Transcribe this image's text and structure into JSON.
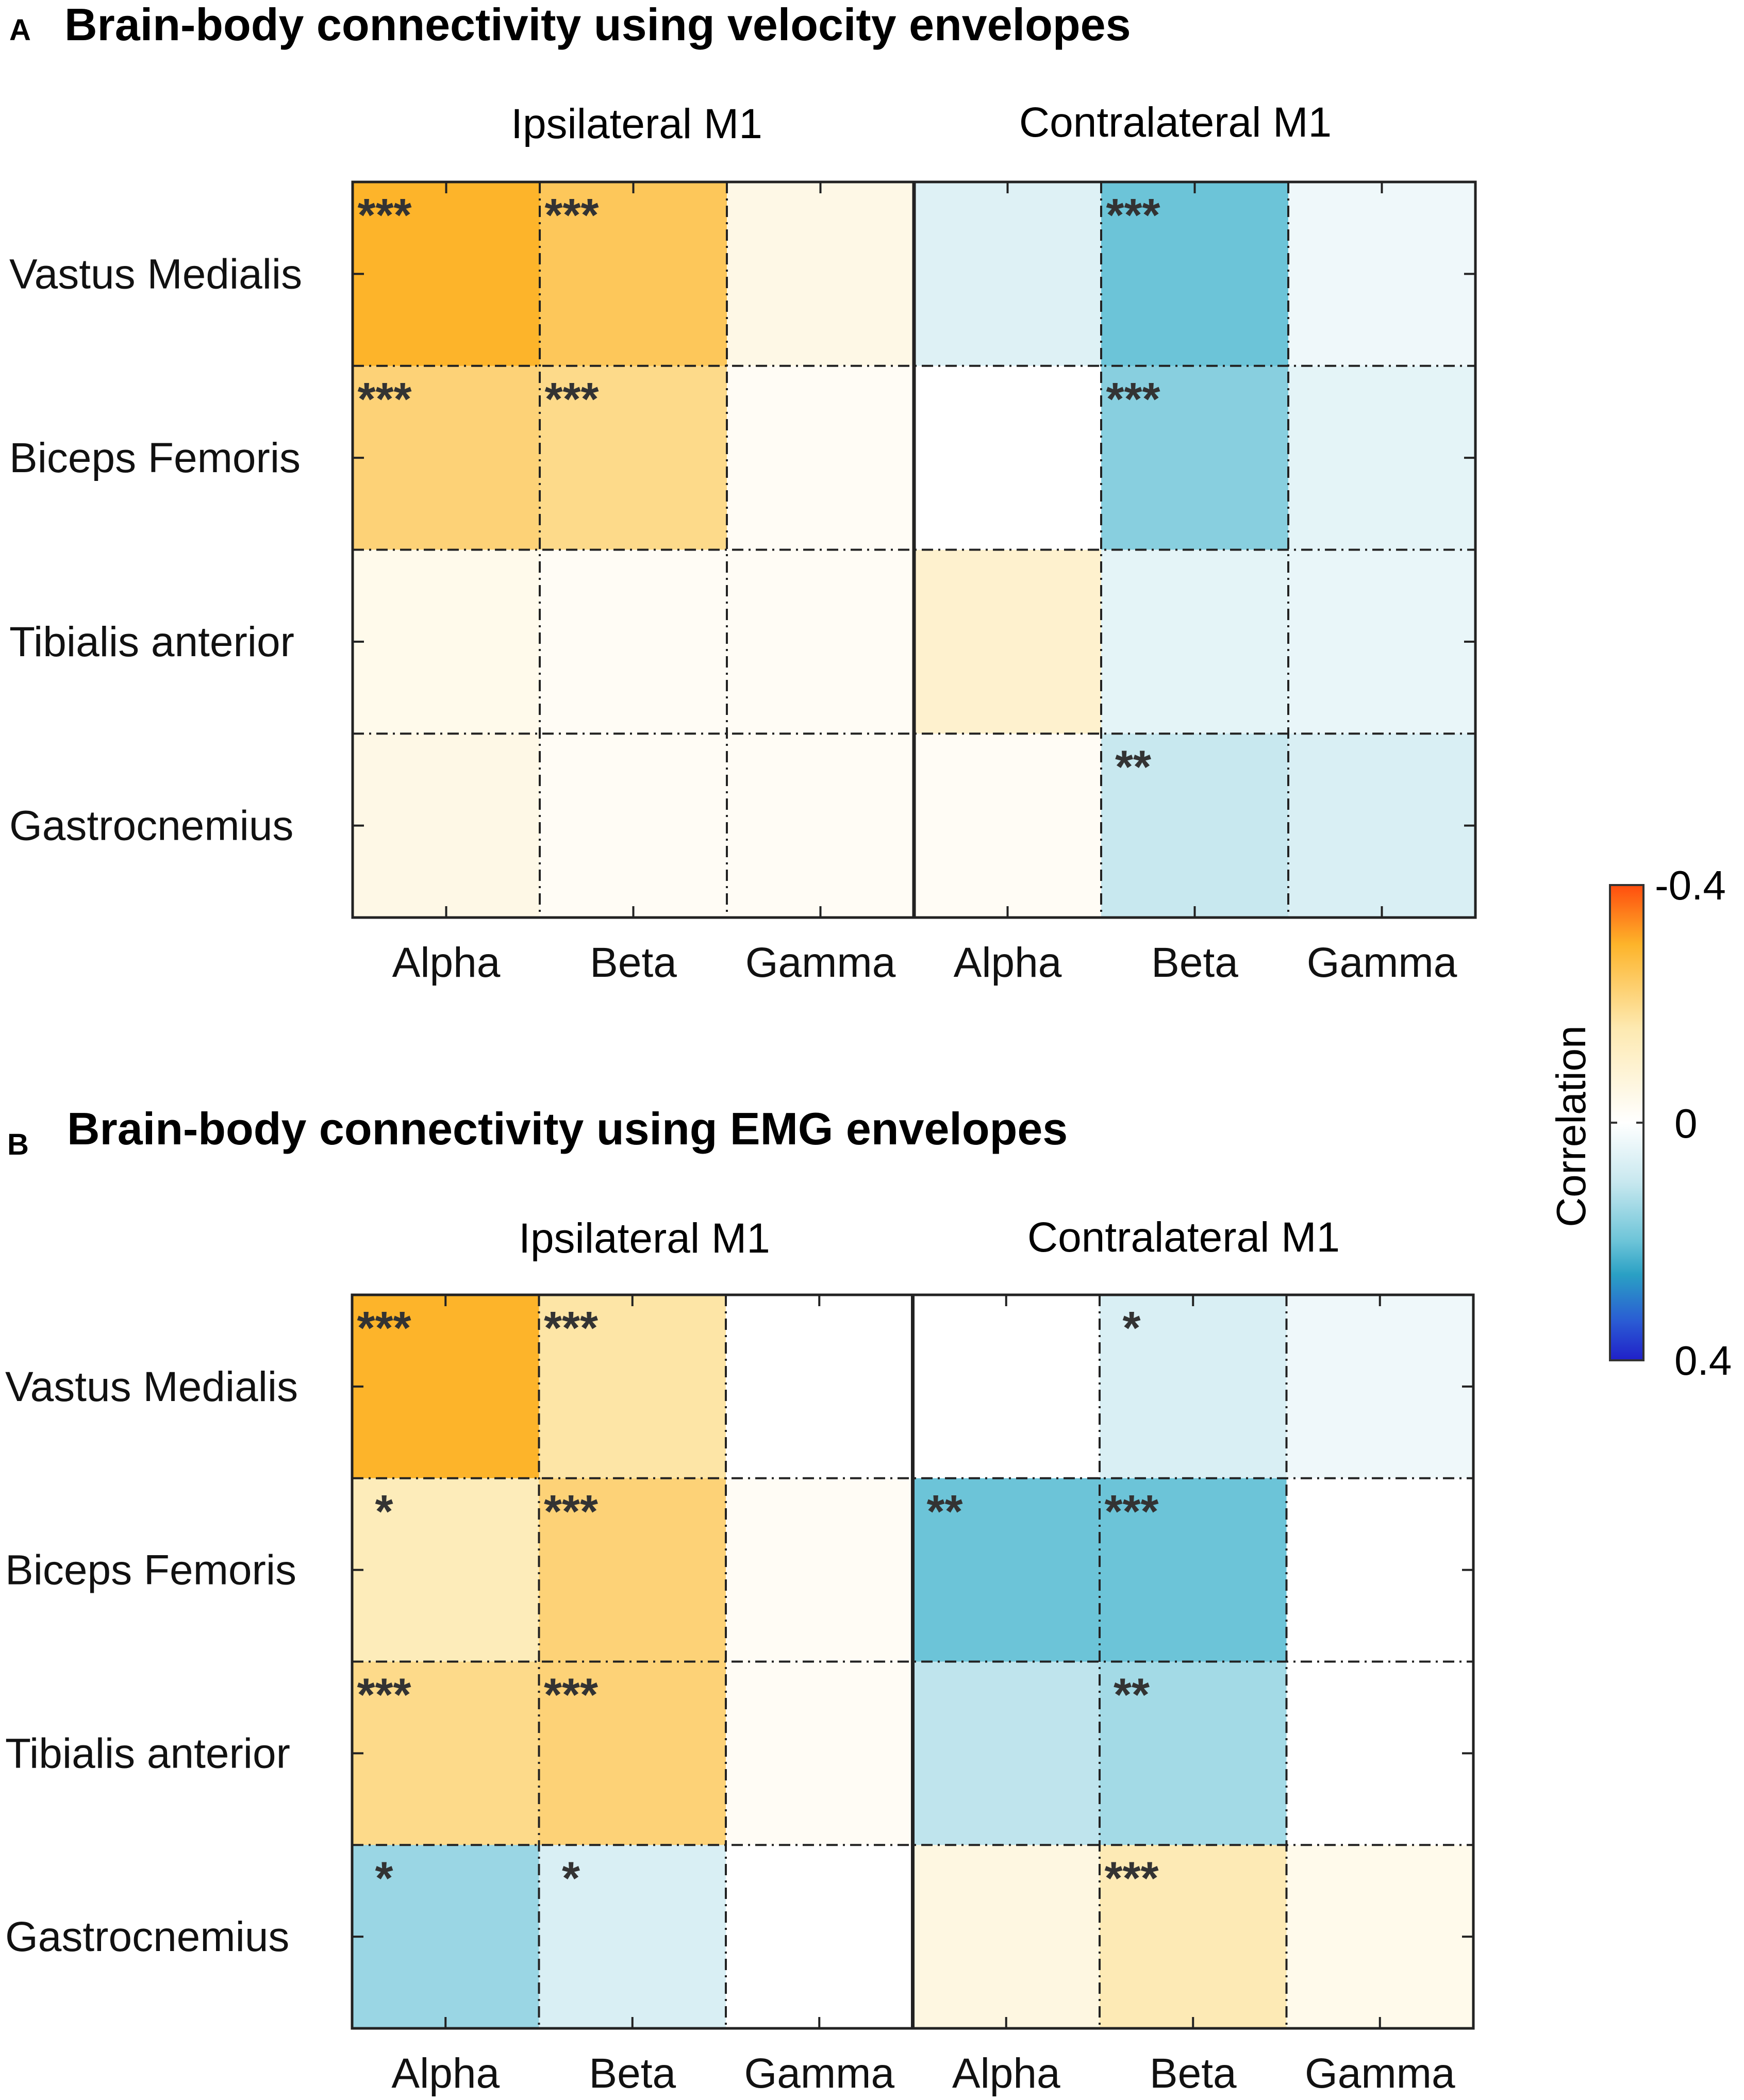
{
  "colors": {
    "scale": [
      "#ff4d0e",
      "#fdb42a",
      "#fde9b0",
      "#ffffff",
      "#c8e8ef",
      "#6cc4d8",
      "#2aa0c4",
      "#2a5ad4",
      "#2020c8"
    ],
    "frame": "#222222",
    "star": "#333333"
  },
  "colorbar": {
    "label": "Correlation",
    "top_label": "-0.4",
    "mid_label": "0",
    "bottom_label": "0.4",
    "min": -0.4,
    "max": 0.4
  },
  "chart_data": [
    {
      "type": "heatmap",
      "panel_letter": "A",
      "title": "Brain-body connectivity using velocity envelopes",
      "groups": [
        "Ipsilateral M1",
        "Contralateral M1"
      ],
      "columns": [
        "Alpha",
        "Beta",
        "Gamma",
        "Alpha",
        "Beta",
        "Gamma"
      ],
      "rows": [
        "Vastus Medialis",
        "Biceps Femoris",
        "Tibialis anterior",
        "Gastrocnemius"
      ],
      "values": [
        [
          -0.3,
          -0.25,
          -0.05,
          0.06,
          0.2,
          0.03
        ],
        [
          -0.22,
          -0.2,
          -0.02,
          0.0,
          0.17,
          0.05
        ],
        [
          -0.04,
          -0.02,
          -0.02,
          -0.1,
          0.05,
          0.04
        ],
        [
          -0.05,
          -0.02,
          -0.02,
          -0.02,
          0.1,
          0.07
        ]
      ],
      "significance": [
        [
          "***",
          "***",
          "",
          "",
          "***",
          ""
        ],
        [
          "***",
          "***",
          "",
          "",
          "***",
          ""
        ],
        [
          "",
          "",
          "",
          "",
          "",
          ""
        ],
        [
          "",
          "",
          "",
          "",
          "**",
          ""
        ]
      ]
    },
    {
      "type": "heatmap",
      "panel_letter": "B",
      "title": "Brain-body connectivity using EMG envelopes",
      "groups": [
        "Ipsilateral M1",
        "Contralateral M1"
      ],
      "columns": [
        "Alpha",
        "Beta",
        "Gamma",
        "Alpha",
        "Beta",
        "Gamma"
      ],
      "rows": [
        "Vastus Medialis",
        "Biceps Femoris",
        "Tibialis anterior",
        "Gastrocnemius"
      ],
      "values": [
        [
          -0.3,
          -0.17,
          0.0,
          0.0,
          0.07,
          0.03
        ],
        [
          -0.14,
          -0.22,
          -0.02,
          0.2,
          0.2,
          0.0
        ],
        [
          -0.2,
          -0.22,
          -0.02,
          0.11,
          0.14,
          0.0
        ],
        [
          0.15,
          0.07,
          0.0,
          -0.06,
          -0.15,
          -0.04
        ]
      ],
      "significance": [
        [
          "***",
          "***",
          "",
          "",
          "*",
          ""
        ],
        [
          "*",
          "***",
          "",
          "**",
          "***",
          ""
        ],
        [
          "***",
          "***",
          "",
          "",
          "**",
          ""
        ],
        [
          "*",
          "*",
          "",
          "",
          "***",
          ""
        ]
      ]
    }
  ]
}
